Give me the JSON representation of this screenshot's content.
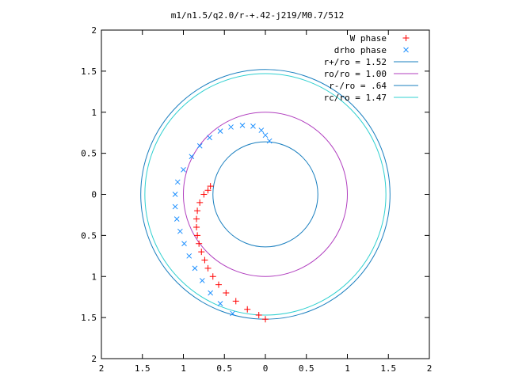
{
  "chart_data": {
    "type": "scatter",
    "title": "m1/n1.5/q2.0/r-+.42-j219/M0.7/512",
    "xlabel": "",
    "ylabel": "",
    "xlim": [
      -2,
      2
    ],
    "ylim": [
      -2,
      2
    ],
    "x_tick_values": [
      -2,
      -1.5,
      -1,
      -0.5,
      0,
      0.5,
      1,
      1.5,
      2
    ],
    "x_tick_labels": [
      "2",
      "1.5",
      "1",
      "0.5",
      "0",
      "0.5",
      "1",
      "1.5",
      "2"
    ],
    "y_tick_values": [
      2,
      1.5,
      1,
      0.5,
      0,
      -0.5,
      -1,
      -1.5,
      -2
    ],
    "y_tick_labels": [
      "2",
      "1.5",
      "1",
      "0.5",
      "0",
      "0.5",
      "1",
      "1.5",
      "2"
    ],
    "grid": false,
    "legend_position": "top-right",
    "series": [
      {
        "name": "W phase",
        "kind": "points",
        "marker": "plus",
        "color": "#ff0000",
        "points": [
          [
            -0.67,
            0.1
          ],
          [
            -0.7,
            0.05
          ],
          [
            -0.75,
            0.0
          ],
          [
            -0.8,
            -0.1
          ],
          [
            -0.83,
            -0.2
          ],
          [
            -0.84,
            -0.3
          ],
          [
            -0.84,
            -0.4
          ],
          [
            -0.83,
            -0.5
          ],
          [
            -0.81,
            -0.6
          ],
          [
            -0.78,
            -0.7
          ],
          [
            -0.74,
            -0.8
          ],
          [
            -0.7,
            -0.9
          ],
          [
            -0.64,
            -1.0
          ],
          [
            -0.57,
            -1.1
          ],
          [
            -0.48,
            -1.2
          ],
          [
            -0.36,
            -1.3
          ],
          [
            -0.22,
            -1.4
          ],
          [
            -0.08,
            -1.47
          ],
          [
            0.0,
            -1.52
          ]
        ]
      },
      {
        "name": "drho phase",
        "kind": "points",
        "marker": "cross",
        "color": "#1e90ff",
        "points": [
          [
            0.05,
            0.65
          ],
          [
            0.0,
            0.72
          ],
          [
            -0.05,
            0.78
          ],
          [
            -0.15,
            0.83
          ],
          [
            -0.28,
            0.84
          ],
          [
            -0.42,
            0.82
          ],
          [
            -0.55,
            0.77
          ],
          [
            -0.68,
            0.69
          ],
          [
            -0.8,
            0.59
          ],
          [
            -0.9,
            0.46
          ],
          [
            -1.0,
            0.3
          ],
          [
            -1.07,
            0.15
          ],
          [
            -1.1,
            0.0
          ],
          [
            -1.1,
            -0.15
          ],
          [
            -1.08,
            -0.3
          ],
          [
            -1.04,
            -0.45
          ],
          [
            -0.99,
            -0.6
          ],
          [
            -0.93,
            -0.75
          ],
          [
            -0.86,
            -0.9
          ],
          [
            -0.77,
            -1.05
          ],
          [
            -0.67,
            -1.2
          ],
          [
            -0.55,
            -1.33
          ],
          [
            -0.4,
            -1.45
          ]
        ]
      },
      {
        "name": "r+/ro = 1.52",
        "kind": "circle",
        "radius": 1.52,
        "color": "#1a7fbf"
      },
      {
        "name": "ro/ro = 1.00",
        "kind": "circle",
        "radius": 1.0,
        "color": "#b13fbf"
      },
      {
        "name": "r-/ro = .64",
        "kind": "circle",
        "radius": 0.64,
        "color": "#1a7fbf"
      },
      {
        "name": "rc/ro = 1.47",
        "kind": "circle",
        "radius": 1.47,
        "color": "#30d0d0"
      }
    ]
  }
}
